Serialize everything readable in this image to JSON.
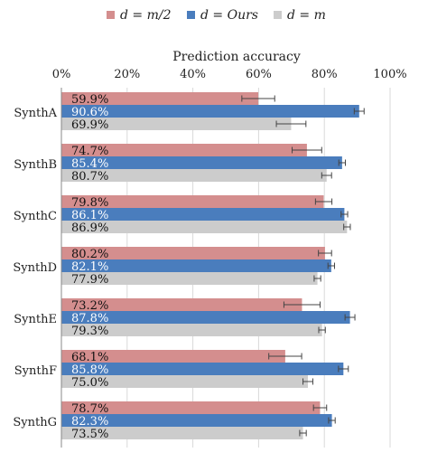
{
  "chart_data": {
    "type": "bar",
    "orientation": "horizontal",
    "title": "Prediction accuracy",
    "xlim": [
      0,
      100
    ],
    "x_ticks": [
      "0%",
      "20%",
      "40%",
      "60%",
      "80%",
      "100%"
    ],
    "x_tick_values": [
      0,
      20,
      40,
      60,
      80,
      100
    ],
    "grid": true,
    "legend_position": "top",
    "categories": [
      "SynthA",
      "SynthB",
      "SynthC",
      "SynthD",
      "SynthE",
      "SynthF",
      "SynthG"
    ],
    "series": [
      {
        "name": "d = m/2",
        "color": "#d48e8e",
        "values": [
          59.9,
          74.7,
          79.8,
          80.2,
          73.2,
          68.1,
          78.7
        ],
        "labels": [
          "59.9%",
          "74.7%",
          "79.8%",
          "80.2%",
          "73.2%",
          "68.1%",
          "78.7%"
        ],
        "error": [
          5.0,
          4.5,
          2.5,
          2.0,
          5.5,
          5.0,
          2.0
        ],
        "label_color": "#111111"
      },
      {
        "name": "d = Ours",
        "color": "#4a7dbd",
        "values": [
          90.6,
          85.4,
          86.1,
          82.1,
          87.8,
          85.8,
          82.3
        ],
        "labels": [
          "90.6%",
          "85.4%",
          "86.1%",
          "82.1%",
          "87.8%",
          "85.8%",
          "82.3%"
        ],
        "error": [
          1.5,
          1.0,
          1.0,
          1.0,
          1.5,
          1.5,
          1.0
        ],
        "label_color": "#ffffff"
      },
      {
        "name": "d = m",
        "color": "#cccccc",
        "values": [
          69.9,
          80.7,
          86.9,
          77.9,
          79.3,
          75.0,
          73.5
        ],
        "labels": [
          "69.9%",
          "80.7%",
          "86.9%",
          "77.9%",
          "79.3%",
          "75.0%",
          "73.5%"
        ],
        "error": [
          4.5,
          1.5,
          1.0,
          1.0,
          1.0,
          1.5,
          1.0
        ],
        "label_color": "#111111"
      }
    ]
  }
}
